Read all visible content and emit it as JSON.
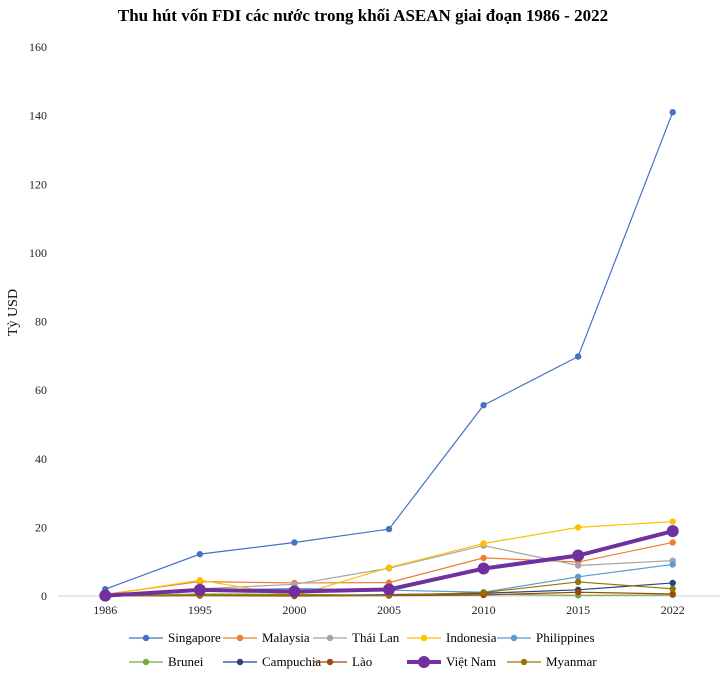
{
  "chart_data": {
    "type": "line",
    "title": "Thu hút vốn FDI các nước trong khối ASEAN giai đoạn 1986 - 2022",
    "xlabel": "",
    "ylabel": "Tỷ USD",
    "categories": [
      "1986",
      "1995",
      "2000",
      "2005",
      "2010",
      "2015",
      "2022"
    ],
    "ylim": [
      0,
      160
    ],
    "yticks": [
      0,
      20,
      40,
      60,
      80,
      100,
      120,
      140,
      160
    ],
    "grid": false,
    "legend_position": "bottom",
    "series": [
      {
        "name": "Singapore",
        "color": "#4472C4",
        "values": [
          2.0,
          12.2,
          15.6,
          19.5,
          55.6,
          69.8,
          141.0
        ],
        "highlight": false
      },
      {
        "name": "Malaysia",
        "color": "#ED7D31",
        "values": [
          0.5,
          4.2,
          3.8,
          3.9,
          11.1,
          9.9,
          15.6
        ],
        "highlight": false
      },
      {
        "name": "Thái Lan",
        "color": "#A5A5A5",
        "values": [
          0.3,
          2.1,
          3.4,
          8.1,
          14.7,
          8.9,
          10.3
        ],
        "highlight": false
      },
      {
        "name": "Indonesia",
        "color": "#FFC000",
        "values": [
          0.3,
          4.6,
          0.0,
          8.3,
          15.3,
          20.0,
          21.7
        ],
        "highlight": false
      },
      {
        "name": "Philippines",
        "color": "#5B9BD5",
        "values": [
          0.1,
          1.6,
          2.2,
          1.7,
          1.1,
          5.6,
          9.2
        ],
        "highlight": false
      },
      {
        "name": "Brunei",
        "color": "#70AD47",
        "values": [
          0.0,
          0.6,
          0.5,
          0.2,
          0.5,
          0.2,
          0.3
        ],
        "highlight": false
      },
      {
        "name": "Campuchia",
        "color": "#264478",
        "values": [
          0.0,
          0.2,
          0.1,
          0.4,
          0.8,
          1.8,
          3.8
        ],
        "highlight": false
      },
      {
        "name": "Lào",
        "color": "#9E480E",
        "values": [
          0.0,
          0.1,
          0.0,
          0.1,
          0.3,
          1.1,
          0.6
        ],
        "highlight": false
      },
      {
        "name": "Việt Nam",
        "color": "#7030A0",
        "values": [
          0.1,
          1.8,
          1.3,
          1.9,
          8.0,
          11.8,
          18.9
        ],
        "highlight": true
      },
      {
        "name": "Myanmar",
        "color": "#997300",
        "values": [
          0.0,
          0.3,
          0.3,
          0.2,
          1.0,
          4.1,
          2.1
        ],
        "highlight": false
      }
    ]
  }
}
